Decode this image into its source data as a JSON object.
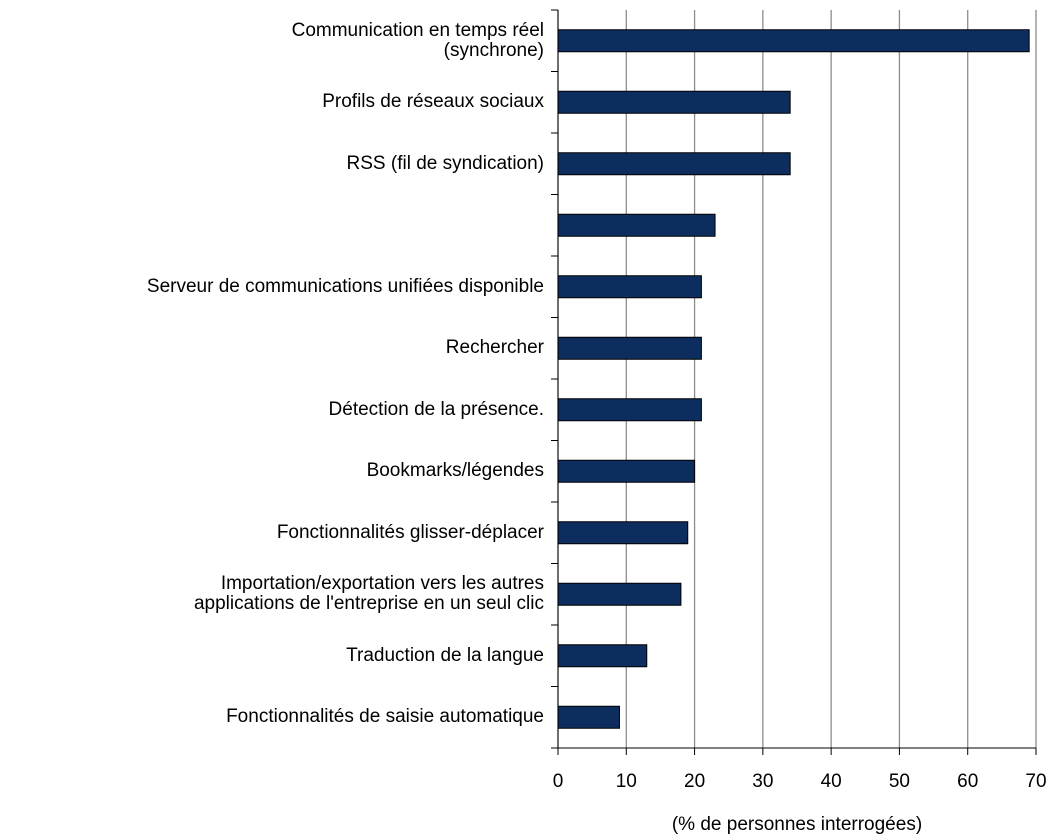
{
  "chart_data": {
    "type": "bar",
    "orientation": "horizontal",
    "categories": [
      "Communication en temps réel\n(synchrone)",
      "Profils de réseaux sociaux",
      "RSS (fil de syndication)",
      null,
      "Serveur de communications unifiées disponible",
      "Rechercher",
      "Détection de la présence.",
      "Bookmarks/légendes",
      "Fonctionnalités glisser-déplacer",
      "Importation/exportation vers les autres\napplications de l'entreprise en un seul clic",
      "Traduction de la langue",
      "Fonctionnalités de saisie automatique"
    ],
    "values": [
      69,
      34,
      34,
      23,
      21,
      21,
      21,
      20,
      19,
      18,
      13,
      9
    ],
    "color": "#0c2d5e",
    "xlabel": "(% de personnes interrogées)",
    "xlim": [
      0,
      70
    ],
    "xticks": [
      0,
      10,
      20,
      30,
      40,
      50,
      60,
      70
    ],
    "grid": true
  }
}
